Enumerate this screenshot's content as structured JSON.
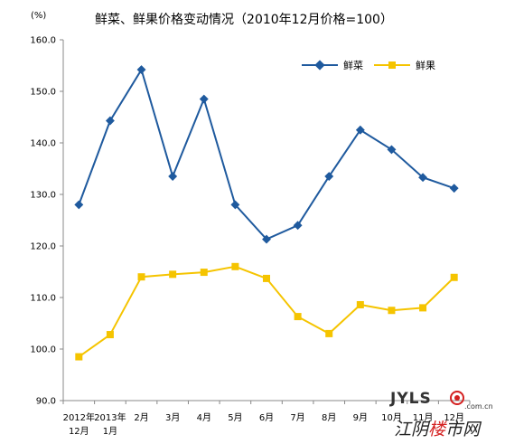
{
  "chart_data": {
    "type": "line",
    "title": "鲜菜、鲜果价格变动情况（2010年12月价格=100）",
    "ylabel": "",
    "y_unit": "(%)",
    "xlabel": "",
    "ylim": [
      90,
      160
    ],
    "y_ticks": [
      "90.0",
      "100.0",
      "110.0",
      "120.0",
      "130.0",
      "140.0",
      "150.0",
      "160.0"
    ],
    "categories": [
      {
        "line1": "2012年",
        "line2": "12月"
      },
      {
        "line1": "2013年",
        "line2": "1月"
      },
      {
        "line1": "2月",
        "line2": ""
      },
      {
        "line1": "3月",
        "line2": ""
      },
      {
        "line1": "4月",
        "line2": ""
      },
      {
        "line1": "5月",
        "line2": ""
      },
      {
        "line1": "6月",
        "line2": ""
      },
      {
        "line1": "7月",
        "line2": ""
      },
      {
        "line1": "8月",
        "line2": ""
      },
      {
        "line1": "9月",
        "line2": ""
      },
      {
        "line1": "10月",
        "line2": ""
      },
      {
        "line1": "11月",
        "line2": ""
      },
      {
        "line1": "12月",
        "line2": ""
      }
    ],
    "series": [
      {
        "name": "鲜菜",
        "color": "#1f5a9e",
        "marker": "diamond",
        "values": [
          128.0,
          144.3,
          154.2,
          133.5,
          148.5,
          128.0,
          121.3,
          124.0,
          133.5,
          142.5,
          138.7,
          133.3,
          131.2
        ]
      },
      {
        "name": "鲜果",
        "color": "#f5c400",
        "marker": "square",
        "values": [
          98.5,
          102.8,
          114.0,
          114.5,
          114.9,
          116.0,
          113.7,
          106.3,
          103.0,
          108.6,
          107.5,
          108.0,
          113.9
        ]
      }
    ],
    "grid": false,
    "legend": "top-right"
  },
  "watermark": {
    "latin": "JYLS",
    "domain": ".com.cn",
    "chinese": "江阴楼市网",
    "icon": "seal-logo-icon",
    "accent": "#d42020"
  }
}
